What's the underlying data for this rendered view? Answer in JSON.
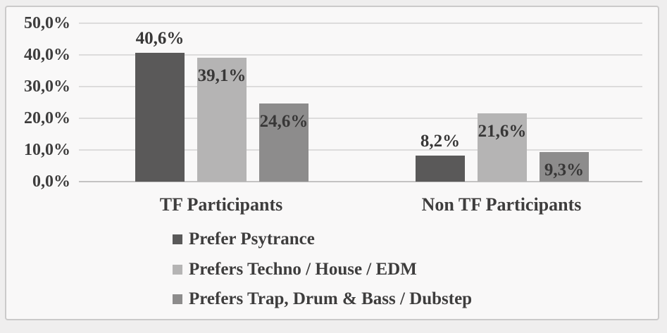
{
  "chart_data": {
    "type": "bar",
    "title": "",
    "categories": [
      "TF Participants",
      "Non TF Participants"
    ],
    "series": [
      {
        "name": "Prefer Psytrance",
        "values": [
          40.6,
          8.2
        ],
        "labels": [
          "40,6%",
          "8,2%"
        ],
        "color": "#5a5959",
        "label_position": "outside"
      },
      {
        "name": "Prefers Techno / House / EDM",
        "values": [
          39.1,
          21.6
        ],
        "labels": [
          "39,1%",
          "21,6%"
        ],
        "color": "#b5b4b4",
        "label_position": "inside"
      },
      {
        "name": "Prefers Trap, Drum & Bass / Dubstep",
        "values": [
          24.6,
          9.3
        ],
        "labels": [
          "24,6%",
          "9,3%"
        ],
        "color": "#8d8c8c",
        "label_position": "inside"
      }
    ],
    "y_axis": {
      "tick_labels": [
        "50,0%",
        "40,0%",
        "30,0%",
        "20,0%",
        "10,0%",
        "0,0%"
      ],
      "tick_values": [
        50,
        40,
        30,
        20,
        10,
        0
      ],
      "min": 0,
      "max": 50,
      "unit": "%"
    },
    "grid": true,
    "legend_position": "bottom",
    "colors": {
      "grid_line": "#dddcdc",
      "axis_line": "#c3c2c2",
      "text": "#3e3d3d",
      "plot_background": "#f9f8f8",
      "frame_border": "#cbcaca"
    }
  }
}
